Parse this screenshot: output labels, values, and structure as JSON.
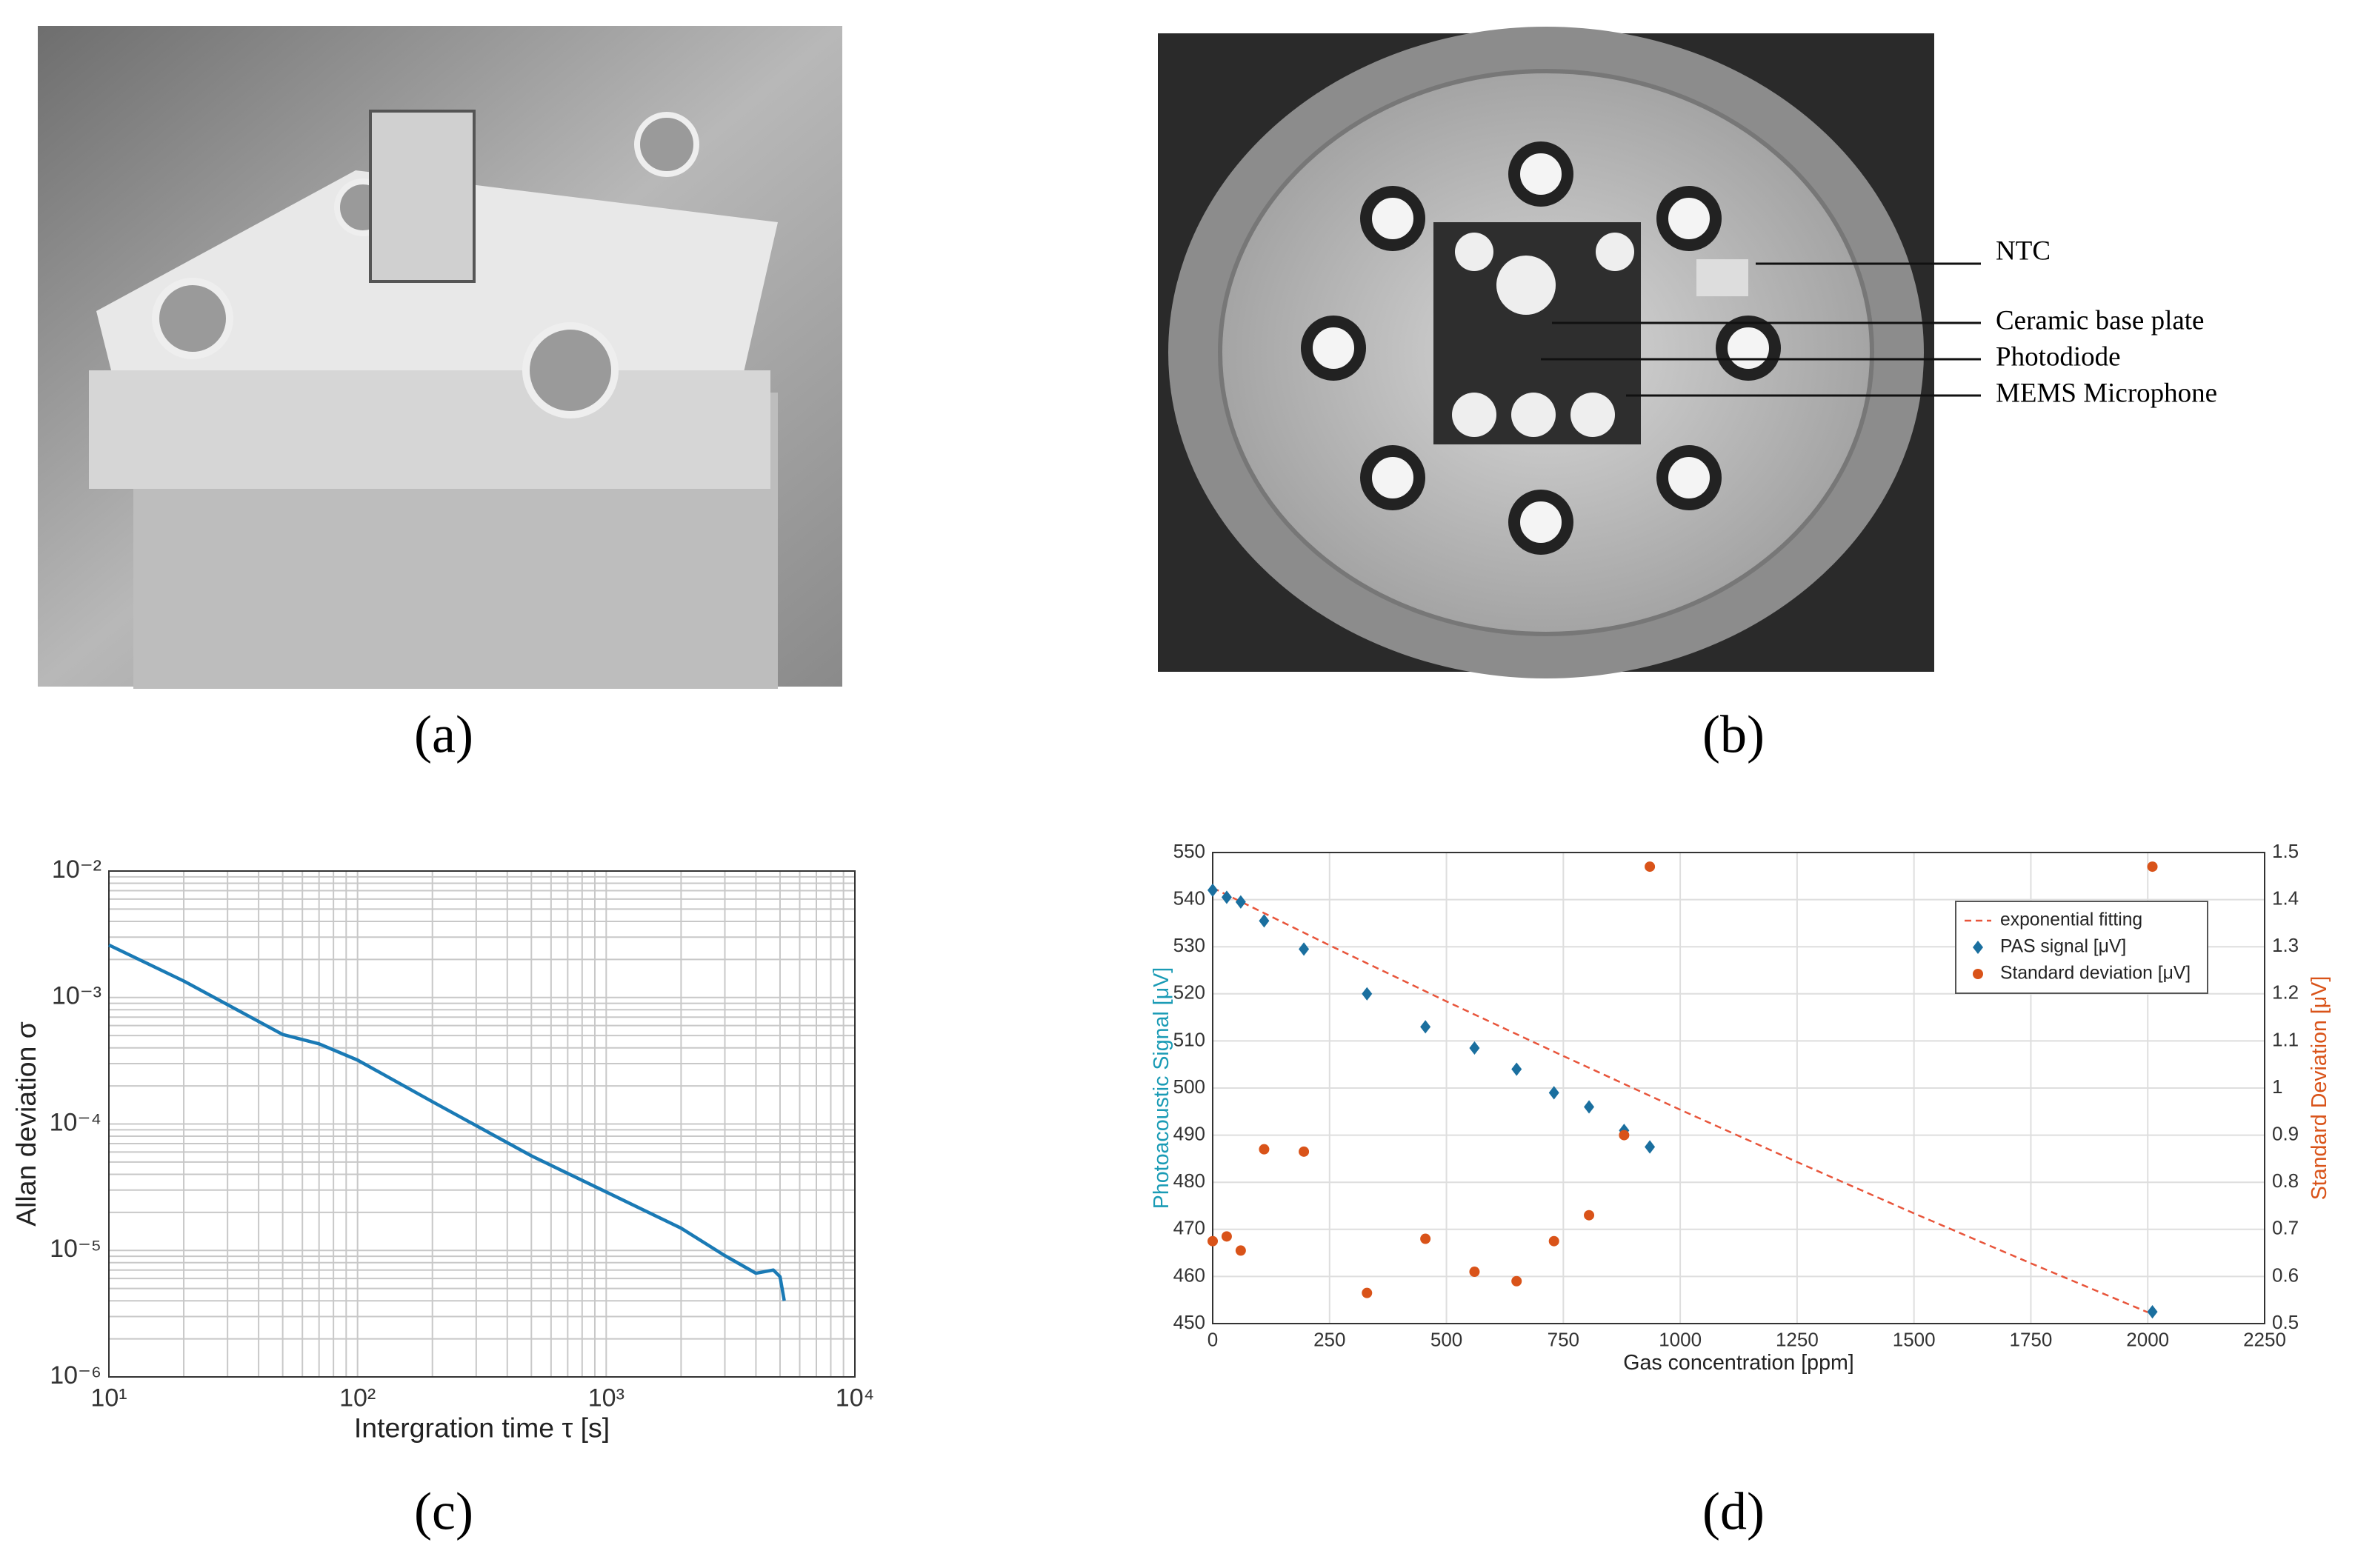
{
  "panel_labels": [
    "(a)",
    "(b)",
    "(c)",
    "(d)"
  ],
  "photo_b": {
    "labels": [
      "NTC",
      "Ceramic base plate",
      "Photodiode",
      "MEMS Microphone"
    ]
  },
  "chart_data": [
    {
      "type": "line",
      "xlabel": "Intergration time τ [s]",
      "ylabel": "Allan deviation σ",
      "xlog": true,
      "ylog": true,
      "grid": true,
      "minor_grid": true,
      "xlim": [
        10,
        10000
      ],
      "xticks": [
        {
          "value": 10,
          "label": "10¹"
        },
        {
          "value": 100,
          "label": "10²"
        },
        {
          "value": 1000,
          "label": "10³"
        },
        {
          "value": 10000,
          "label": "10⁴"
        }
      ],
      "ylim": [
        1e-06,
        0.01
      ],
      "yticks": [
        {
          "value": 1e-06,
          "label": "10⁻⁶"
        },
        {
          "value": 1e-05,
          "label": "10⁻⁵"
        },
        {
          "value": 0.0001,
          "label": "10⁻⁴"
        },
        {
          "value": 0.001,
          "label": "10⁻³"
        },
        {
          "value": 0.01,
          "label": "10⁻²"
        }
      ],
      "series": [
        {
          "color": "#1a7ab5",
          "marker": null,
          "dash": false,
          "x": [
            10,
            20,
            50,
            70,
            100,
            200,
            500,
            1000,
            2000,
            3000,
            4000,
            4700,
            5000,
            5200
          ],
          "values": [
            0.0026,
            0.00135,
            0.00051,
            0.00043,
            0.00032,
            0.00015,
            5.6e-05,
            2.9e-05,
            1.5e-05,
            9.1e-06,
            6.6e-06,
            7e-06,
            6.2e-06,
            4e-06
          ]
        }
      ]
    },
    {
      "type": "scatter",
      "xlabel": "Gas concentration [ppm]",
      "ylabel": "Photoacoustic Signal [μV]",
      "y2label": "Standard Deviation [μV]",
      "ylabel_color": "#1a9bb5",
      "y2label_color": "#d95319",
      "grid": true,
      "legend": "upper right",
      "xlim": [
        0,
        2250
      ],
      "xticks": [
        0,
        250,
        500,
        750,
        1000,
        1250,
        1500,
        1750,
        2000,
        2250
      ],
      "ylim": [
        450,
        550
      ],
      "yticks": [
        450,
        460,
        470,
        480,
        490,
        500,
        510,
        520,
        530,
        540,
        550
      ],
      "y2lim": [
        0.5,
        1.5
      ],
      "y2ticks": [
        0.5,
        0.6,
        0.7,
        0.8,
        0.9,
        1,
        1.1,
        1.2,
        1.3,
        1.4,
        1.5
      ],
      "series": [
        {
          "name": "exponential fitting",
          "color": "#e8553b",
          "marker": null,
          "dash": true,
          "x": [
            0,
            250,
            500,
            750,
            1000,
            1250,
            1500,
            1750,
            2000
          ],
          "values": [
            542.5,
            530.3,
            518.4,
            506.8,
            495.4,
            484.3,
            473.4,
            462.8,
            452.4
          ]
        },
        {
          "name": "PAS signal [μV]",
          "color": "#1a6f9f",
          "marker": "diamond",
          "x": [
            0,
            30,
            60,
            110,
            195,
            330,
            455,
            560,
            650,
            730,
            805,
            880,
            935,
            2010
          ],
          "values": [
            542,
            540.5,
            539.5,
            535.5,
            529.5,
            520,
            513,
            508.5,
            504,
            499,
            496,
            491,
            487.5,
            452.5
          ]
        },
        {
          "name": "Standard deviation [μV]",
          "color": "#d95319",
          "marker": "circle",
          "axis": "y2",
          "x": [
            0,
            30,
            60,
            110,
            195,
            330,
            455,
            560,
            650,
            730,
            805,
            880,
            935,
            2010
          ],
          "values": [
            0.675,
            0.685,
            0.655,
            0.87,
            0.865,
            0.565,
            0.68,
            0.61,
            0.59,
            0.675,
            0.73,
            0.9,
            1.47,
            1.47
          ]
        }
      ]
    }
  ]
}
